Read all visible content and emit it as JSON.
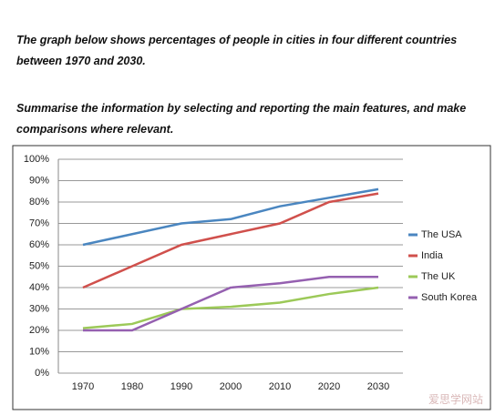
{
  "prompt": {
    "task": [
      "The graph below shows percentages of people in cities in four different countries",
      "between 1970 and 2030."
    ],
    "instruction": [
      "Summarise the information by selecting and reporting the main features, and make",
      "comparisons where relevant."
    ]
  },
  "watermark": "爱思学网站",
  "chart_data": {
    "type": "line",
    "categories": [
      "1970",
      "1980",
      "1990",
      "2000",
      "2010",
      "2020",
      "2030"
    ],
    "series": [
      {
        "name": "The USA",
        "color": "#4a86c0",
        "values": [
          60,
          65,
          70,
          72,
          78,
          82,
          86
        ]
      },
      {
        "name": "India",
        "color": "#d0504c",
        "values": [
          40,
          50,
          60,
          65,
          70,
          80,
          84
        ]
      },
      {
        "name": "The UK",
        "color": "#9cc958",
        "values": [
          21,
          23,
          30,
          31,
          33,
          37,
          40
        ]
      },
      {
        "name": "South Korea",
        "color": "#9560b0",
        "values": [
          20,
          20,
          30,
          40,
          42,
          45,
          45
        ]
      }
    ],
    "ylim": [
      0,
      100
    ],
    "yticks": [
      {
        "value": 0,
        "label": "0%"
      },
      {
        "value": 10,
        "label": "10%"
      },
      {
        "value": 20,
        "label": "20%"
      },
      {
        "value": 30,
        "label": "30%"
      },
      {
        "value": 40,
        "label": "40%"
      },
      {
        "value": 50,
        "label": "50%"
      },
      {
        "value": 60,
        "label": "60%"
      },
      {
        "value": 70,
        "label": "70%"
      },
      {
        "value": 80,
        "label": "80%"
      },
      {
        "value": 90,
        "label": "90%"
      },
      {
        "value": 100,
        "label": "100%"
      }
    ],
    "grid": true,
    "legend": "right"
  }
}
